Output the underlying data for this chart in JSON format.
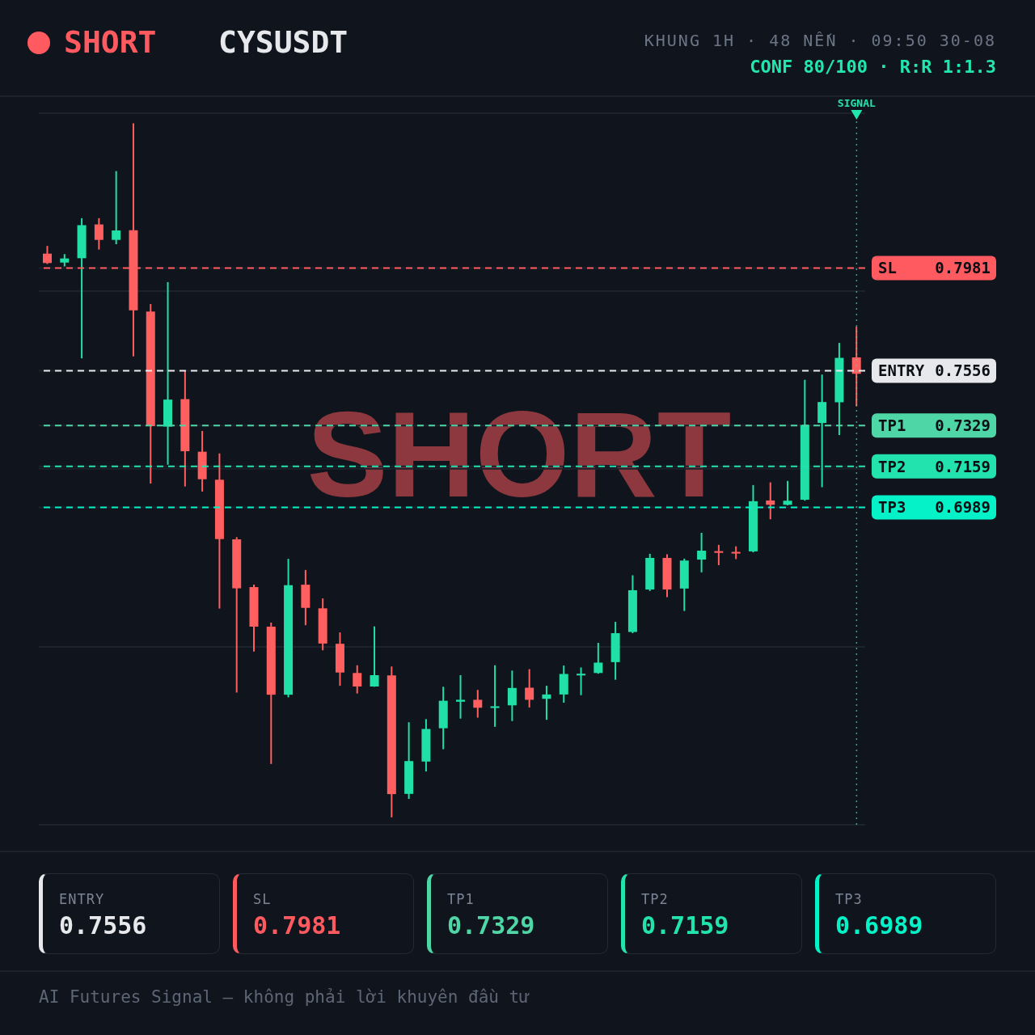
{
  "chart_data": [
    {
      "type": "candlestick",
      "title": "CYSUSDT",
      "subtitle": "KHUNG 1H · 48 NẾN · 09:50 30-08",
      "annotations": [
        "SHORT",
        "SHORT",
        "CONF 80/100 · R:R 1:1.3",
        "SIGNAL"
      ],
      "categories": [
        null,
        null,
        null,
        null,
        null,
        null,
        null,
        null,
        null,
        null,
        null,
        null,
        null,
        null,
        null,
        null,
        null,
        null,
        null,
        null,
        null,
        null,
        null,
        null,
        null,
        null,
        null,
        null,
        null,
        null,
        null,
        null,
        null,
        null,
        null,
        null,
        null,
        null,
        null,
        null,
        null,
        null,
        null,
        null,
        null,
        null,
        null,
        null
      ],
      "ohlc": [
        [
          0.8041,
          0.8073,
          0.7998,
          0.8002
        ],
        [
          0.8004,
          0.8039,
          0.7988,
          0.8021
        ],
        [
          0.8022,
          0.8188,
          0.7607,
          0.8159
        ],
        [
          0.8162,
          0.8188,
          0.8058,
          0.8098
        ],
        [
          0.8098,
          0.8383,
          0.808,
          0.8137
        ],
        [
          0.8138,
          0.8581,
          0.7615,
          0.7806
        ],
        [
          0.7801,
          0.7832,
          0.7088,
          0.7326
        ],
        [
          0.7324,
          0.7923,
          0.7166,
          0.7436
        ],
        [
          0.7438,
          0.7554,
          0.7076,
          0.7222
        ],
        [
          0.722,
          0.7306,
          0.7055,
          0.7106
        ],
        [
          0.7104,
          0.7213,
          0.657,
          0.6858
        ],
        [
          0.6857,
          0.6866,
          0.6222,
          0.6654
        ],
        [
          0.6659,
          0.6669,
          0.6392,
          0.6495
        ],
        [
          0.6495,
          0.6512,
          0.5926,
          0.6213
        ],
        [
          0.6213,
          0.6776,
          0.6202,
          0.6667
        ],
        [
          0.6669,
          0.673,
          0.6501,
          0.6573
        ],
        [
          0.6571,
          0.6612,
          0.6397,
          0.6425
        ],
        [
          0.6424,
          0.6471,
          0.625,
          0.6305
        ],
        [
          0.6303,
          0.6335,
          0.6218,
          0.6247
        ],
        [
          0.6247,
          0.6496,
          0.6246,
          0.6294
        ],
        [
          0.6293,
          0.633,
          0.5705,
          0.5801
        ],
        [
          0.5802,
          0.6099,
          0.5781,
          0.5938
        ],
        [
          0.5936,
          0.6112,
          0.5895,
          0.6071
        ],
        [
          0.6074,
          0.6246,
          0.5987,
          0.6188
        ],
        [
          0.6184,
          0.6294,
          0.6114,
          0.6192
        ],
        [
          0.6192,
          0.6233,
          0.6118,
          0.6159
        ],
        [
          0.6158,
          0.6335,
          0.608,
          0.6165
        ],
        [
          0.6169,
          0.6313,
          0.6104,
          0.6241
        ],
        [
          0.6242,
          0.6319,
          0.616,
          0.6192
        ],
        [
          0.6196,
          0.625,
          0.6109,
          0.6214
        ],
        [
          0.6214,
          0.6334,
          0.618,
          0.6299
        ],
        [
          0.6293,
          0.6326,
          0.6211,
          0.63
        ],
        [
          0.6303,
          0.6428,
          0.63,
          0.6346
        ],
        [
          0.6348,
          0.6515,
          0.6275,
          0.6468
        ],
        [
          0.6473,
          0.6708,
          0.6468,
          0.6646
        ],
        [
          0.6649,
          0.6797,
          0.6643,
          0.678
        ],
        [
          0.678,
          0.6795,
          0.6617,
          0.6649
        ],
        [
          0.6653,
          0.6777,
          0.656,
          0.6769
        ],
        [
          0.6773,
          0.6884,
          0.672,
          0.681
        ],
        [
          0.6808,
          0.6834,
          0.675,
          0.6801
        ],
        [
          0.6805,
          0.6828,
          0.6775,
          0.6798
        ],
        [
          0.6807,
          0.7082,
          0.6803,
          0.7015
        ],
        [
          0.7018,
          0.7093,
          0.694,
          0.7
        ],
        [
          0.7,
          0.7099,
          0.6998,
          0.7017
        ],
        [
          0.7021,
          0.7518,
          0.7017,
          0.7331
        ],
        [
          0.7339,
          0.754,
          0.7073,
          0.7426
        ],
        [
          0.7425,
          0.7671,
          0.7289,
          0.7609
        ],
        [
          0.7611,
          0.7738,
          0.7408,
          0.7543
        ]
      ],
      "colors": [
        "#ff5f5f",
        "#20e0a8",
        "#20e0a8",
        "#ff5f5f",
        "#20e0a8",
        "#ff5f5f",
        "#ff5f5f",
        "#20e0a8",
        "#ff5f5f",
        "#ff5f5f",
        "#ff5f5f",
        "#ff5f5f",
        "#ff5f5f",
        "#ff5f5f",
        "#20e0a8",
        "#ff5f5f",
        "#ff5f5f",
        "#ff5f5f",
        "#ff5f5f",
        "#20e0a8",
        "#ff5f5f",
        "#20e0a8",
        "#20e0a8",
        "#20e0a8",
        "#20e0a8",
        "#ff5f5f",
        "#20e0a8",
        "#20e0a8",
        "#ff5f5f",
        "#20e0a8",
        "#20e0a8",
        "#20e0a8",
        "#20e0a8",
        "#20e0a8",
        "#20e0a8",
        "#20e0a8",
        "#ff5f5f",
        "#20e0a8",
        "#20e0a8",
        "#ff5f5f",
        "#ff5f5f",
        "#20e0a8",
        "#ff5f5f",
        "#20e0a8",
        "#20e0a8",
        "#20e0a8",
        "#20e0a8",
        "#ff5f5f"
      ],
      "ylim": [
        0.5674,
        0.8623
      ],
      "yticks": [
        {
          "value": 0.5674,
          "label": null
        },
        {
          "value": 0.6411,
          "label": null
        },
        0.6989,
        {
          "value": 0.7149,
          "label": null
        },
        0.7159,
        0.7329,
        0.7556,
        {
          "value": 0.7886,
          "label": null
        },
        0.7981,
        {
          "value": 0.8623,
          "label": null
        }
      ],
      "grid": "y",
      "tick_labels": "y",
      "ref_lines": [
        {
          "axis": "y",
          "value": 0.7981,
          "label": "SL",
          "color": "#ff5a5f",
          "line_style": "dashed"
        },
        {
          "axis": "y",
          "value": 0.7556,
          "label": "ENTRY",
          "color": "#e6e8eb",
          "line_style": "dashed"
        },
        {
          "axis": "y",
          "value": 0.7329,
          "label": "TP1",
          "color": "#4fd6a6",
          "line_style": "dashed"
        },
        {
          "axis": "y",
          "value": 0.7159,
          "label": "TP2",
          "color": "#22e3ae",
          "line_style": "dashed"
        },
        {
          "axis": "y",
          "value": 0.6989,
          "label": "TP3",
          "color": "#05f2c8",
          "line_style": "dashed"
        }
      ]
    },
    {
      "type": "other",
      "categories": [
        "ENTRY",
        "SL",
        "TP1",
        "TP2",
        "TP3"
      ],
      "values": [
        0.7556,
        0.7981,
        0.7329,
        0.7159,
        0.6989
      ],
      "colors": [
        "#e6e8eb",
        "#ff5a5f",
        "#4fd6a6",
        "#22e3ae",
        "#05f2c8"
      ],
      "data_labels": true,
      "annotations": [
        "AI Futures Signal — không phải lời khuyên đầu tư"
      ]
    }
  ]
}
